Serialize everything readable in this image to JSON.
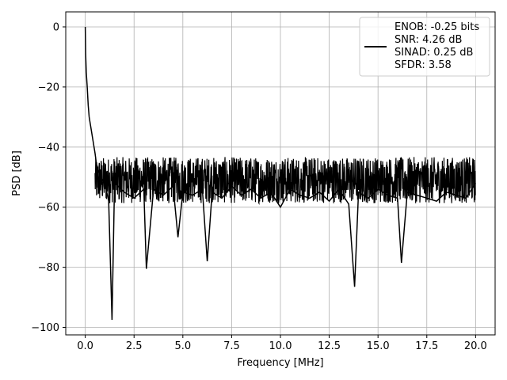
{
  "chart_data": {
    "type": "line",
    "title": "",
    "xlabel": "Frequency [MHz]",
    "ylabel": "PSD [dB]",
    "xlim": [
      -1.0,
      21.0
    ],
    "ylim": [
      -102.5,
      5.0
    ],
    "x_ticks": [
      0.0,
      2.5,
      5.0,
      7.5,
      10.0,
      12.5,
      15.0,
      17.5,
      20.0
    ],
    "x_tick_labels": [
      "0.0",
      "2.5",
      "5.0",
      "7.5",
      "10.0",
      "12.5",
      "15.0",
      "17.5",
      "20.0"
    ],
    "y_ticks": [
      0,
      -20,
      -40,
      -60,
      -80,
      -100
    ],
    "y_tick_labels": [
      "0",
      "−20",
      "−40",
      "−60",
      "−80",
      "−100"
    ],
    "grid": true,
    "legend_position": "top-right",
    "series": [
      {
        "color": "#000000",
        "x": [
          0.0,
          0.02,
          0.05,
          0.1,
          0.15,
          0.2,
          0.3,
          0.4,
          0.5,
          0.6,
          0.8,
          1.0,
          1.2,
          1.37,
          1.5,
          2.0,
          2.5,
          3.0,
          3.13,
          3.5,
          4.0,
          4.5,
          4.75,
          5.0,
          5.5,
          6.0,
          6.25,
          6.5,
          7.0,
          7.5,
          8.0,
          8.5,
          9.0,
          9.5,
          10.0,
          10.5,
          11.0,
          11.5,
          12.0,
          12.5,
          13.0,
          13.5,
          13.8,
          14.0,
          14.5,
          15.0,
          15.5,
          16.0,
          16.2,
          16.5,
          17.0,
          17.5,
          18.0,
          18.5,
          19.0,
          19.5,
          20.0
        ],
        "y": [
          0,
          -9,
          -15,
          -20,
          -26,
          -30,
          -34,
          -38,
          -42,
          -47,
          -50,
          -52,
          -58,
          -97.5,
          -52,
          -55,
          -57,
          -54,
          -80.5,
          -54,
          -56,
          -53,
          -70,
          -55,
          -56,
          -54,
          -78,
          -55,
          -57,
          -53,
          -56,
          -54,
          -57,
          -55,
          -60,
          -54,
          -56,
          -57,
          -55,
          -58,
          -54,
          -59,
          -86.5,
          -55,
          -57,
          -54,
          -56,
          -57,
          -78.5,
          -55,
          -56,
          -57,
          -58,
          -55,
          -56,
          -57,
          -52
        ],
        "name": "",
        "noise_band_low": -62,
        "noise_band_high": -40
      }
    ],
    "annotations": [
      "ENOB: -0.25 bits",
      "SNR: 4.26 dB",
      "SINAD: 0.25 dB",
      "SFDR: 3.58"
    ]
  }
}
